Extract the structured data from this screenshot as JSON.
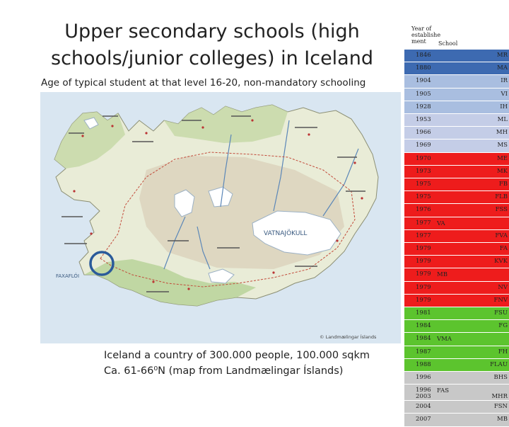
{
  "slide": {
    "title_line1": "Upper secondary schools (high",
    "title_line2": "schools/junior colleges) in Iceland",
    "subtitle": "Age of typical student at that level 16-20, non-mandatory schooling",
    "caption_line1": "Iceland a country of 300.000 people, 100.000 sqkm",
    "caption_line2": "Ca. 61-66⁰N (map from Landmælingar Íslands)"
  },
  "map": {
    "glacier_label": "VATNAJÖKULL",
    "credit": "© Landmælingar Íslands",
    "ocean_label": "FAXAFLÓI",
    "highlight_color": "#2a5a9a"
  },
  "table": {
    "header_year": "Year of",
    "header_year2": "establishe",
    "header_year3": "ment",
    "header_school": "School",
    "rows": [
      {
        "year": "1846",
        "code": "MR",
        "mid": "",
        "color": "#3d6ab1"
      },
      {
        "year": "1880",
        "code": "MA",
        "mid": "",
        "color": "#3d6ab1"
      },
      {
        "year": "1904",
        "code": "IR",
        "mid": "",
        "color": "#a9bee0"
      },
      {
        "year": "1905",
        "code": "VI",
        "mid": "",
        "color": "#a9bee0"
      },
      {
        "year": "1928",
        "code": "IH",
        "mid": "",
        "color": "#a9bee0"
      },
      {
        "year": "1953",
        "code": "ML",
        "mid": "",
        "color": "#c4cde7"
      },
      {
        "year": "1966",
        "code": "MH",
        "mid": "",
        "color": "#c4cde7"
      },
      {
        "year": "1969",
        "code": "MS",
        "mid": "",
        "color": "#c4cde7"
      },
      {
        "year": "1970",
        "code": "ME",
        "mid": "",
        "color": "#ee1c1c"
      },
      {
        "year": "1973",
        "code": "MK",
        "mid": "",
        "color": "#ee1c1c"
      },
      {
        "year": "1975",
        "code": "FB",
        "mid": "",
        "color": "#ee1c1c"
      },
      {
        "year": "1975",
        "code": "FLB",
        "mid": "",
        "color": "#ee1c1c"
      },
      {
        "year": "1976",
        "code": "FSS",
        "mid": "",
        "color": "#ee1c1c"
      },
      {
        "year": "1977",
        "code": "",
        "mid": "VA",
        "color": "#ee1c1c"
      },
      {
        "year": "1977",
        "code": "FVA",
        "mid": "",
        "color": "#ee1c1c"
      },
      {
        "year": "1979",
        "code": "FA",
        "mid": "",
        "color": "#ee1c1c"
      },
      {
        "year": "1979",
        "code": "KVK",
        "mid": "",
        "color": "#ee1c1c"
      },
      {
        "year": "1979",
        "code": "",
        "mid": "MB",
        "color": "#ee1c1c"
      },
      {
        "year": "1979",
        "code": "NV",
        "mid": "",
        "color": "#ee1c1c"
      },
      {
        "year": "1979",
        "code": "FNV",
        "mid": "",
        "color": "#ee1c1c"
      },
      {
        "year": "1981",
        "code": "FSU",
        "mid": "",
        "color": "#5cc42e"
      },
      {
        "year": "1984",
        "code": "FG",
        "mid": "",
        "color": "#5cc42e"
      },
      {
        "year": "1984",
        "code": "",
        "mid": "VMA",
        "color": "#5cc42e"
      },
      {
        "year": "1987",
        "code": "FH",
        "mid": "",
        "color": "#5cc42e"
      },
      {
        "year": "1988",
        "code": "FLAU",
        "mid": "",
        "color": "#5cc42e"
      },
      {
        "year": "1996",
        "code": "BHS",
        "mid": "",
        "color": "#c8c8c8"
      },
      {
        "year": "1996",
        "year2": "2003",
        "code": "MHR",
        "mid": "FAS",
        "color": "#c8c8c8"
      },
      {
        "year": "2004",
        "code": "FSN",
        "mid": "",
        "color": "#c8c8c8"
      },
      {
        "year": "2007",
        "code": "MB",
        "mid": "",
        "color": "#c8c8c8"
      }
    ]
  }
}
